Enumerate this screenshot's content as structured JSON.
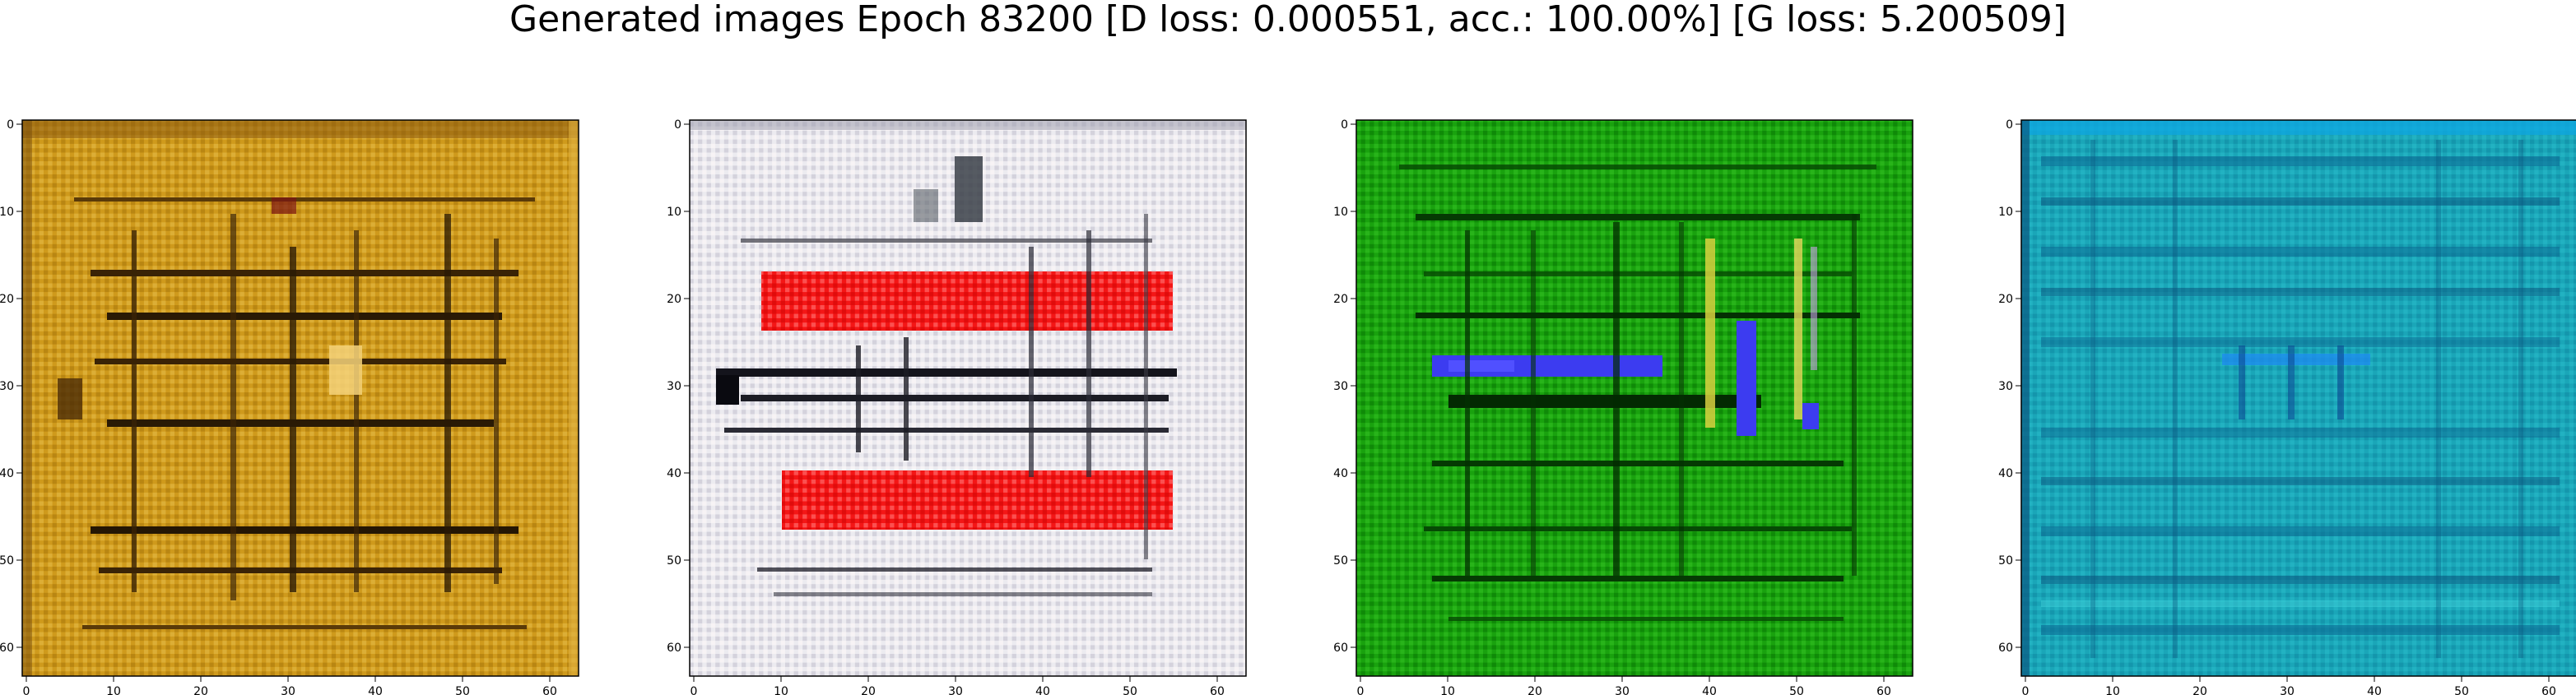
{
  "figure": {
    "title": "Generated images Epoch 83200 [D loss: 0.000551, acc.: 100.00%] [G loss: 5.200509]"
  },
  "chart_data": [
    {
      "type": "heatmap",
      "panel": "generated-image-1",
      "dominant_color": "#c89418",
      "stripe_color": "#2a1a05",
      "accent_color": "#f4d27a",
      "xlim": [
        0,
        63
      ],
      "ylim": [
        63,
        0
      ],
      "xticks": [
        "0",
        "10",
        "20",
        "30",
        "40",
        "50",
        "60"
      ],
      "yticks": [
        "0",
        "10",
        "20",
        "30",
        "40",
        "50",
        "60"
      ]
    },
    {
      "type": "heatmap",
      "panel": "generated-image-2",
      "dominant_color": "#e6e2ea",
      "stripe_color": "#1c1c24",
      "accent_color": "#f01010",
      "xlim": [
        0,
        63
      ],
      "ylim": [
        63,
        0
      ],
      "xticks": [
        "0",
        "10",
        "20",
        "30",
        "40",
        "50",
        "60"
      ],
      "yticks": [
        "0",
        "10",
        "20",
        "30",
        "40",
        "50",
        "60"
      ]
    },
    {
      "type": "heatmap",
      "panel": "generated-image-3",
      "dominant_color": "#169a0c",
      "stripe_color": "#032a02",
      "accent_color": "#3c3cf0",
      "xlim": [
        0,
        63
      ],
      "ylim": [
        63,
        0
      ],
      "xticks": [
        "0",
        "10",
        "20",
        "30",
        "40",
        "50",
        "60"
      ],
      "yticks": [
        "0",
        "10",
        "20",
        "30",
        "40",
        "50",
        "60"
      ]
    },
    {
      "type": "heatmap",
      "panel": "generated-image-4",
      "dominant_color": "#18a4b8",
      "stripe_color": "#0b5a82",
      "accent_color": "#1e8af0",
      "xlim": [
        0,
        63
      ],
      "ylim": [
        63,
        0
      ],
      "xticks": [
        "0",
        "10",
        "20",
        "30",
        "40",
        "50",
        "60"
      ],
      "yticks": [
        "0",
        "10",
        "20",
        "30",
        "40",
        "50",
        "60"
      ]
    }
  ]
}
